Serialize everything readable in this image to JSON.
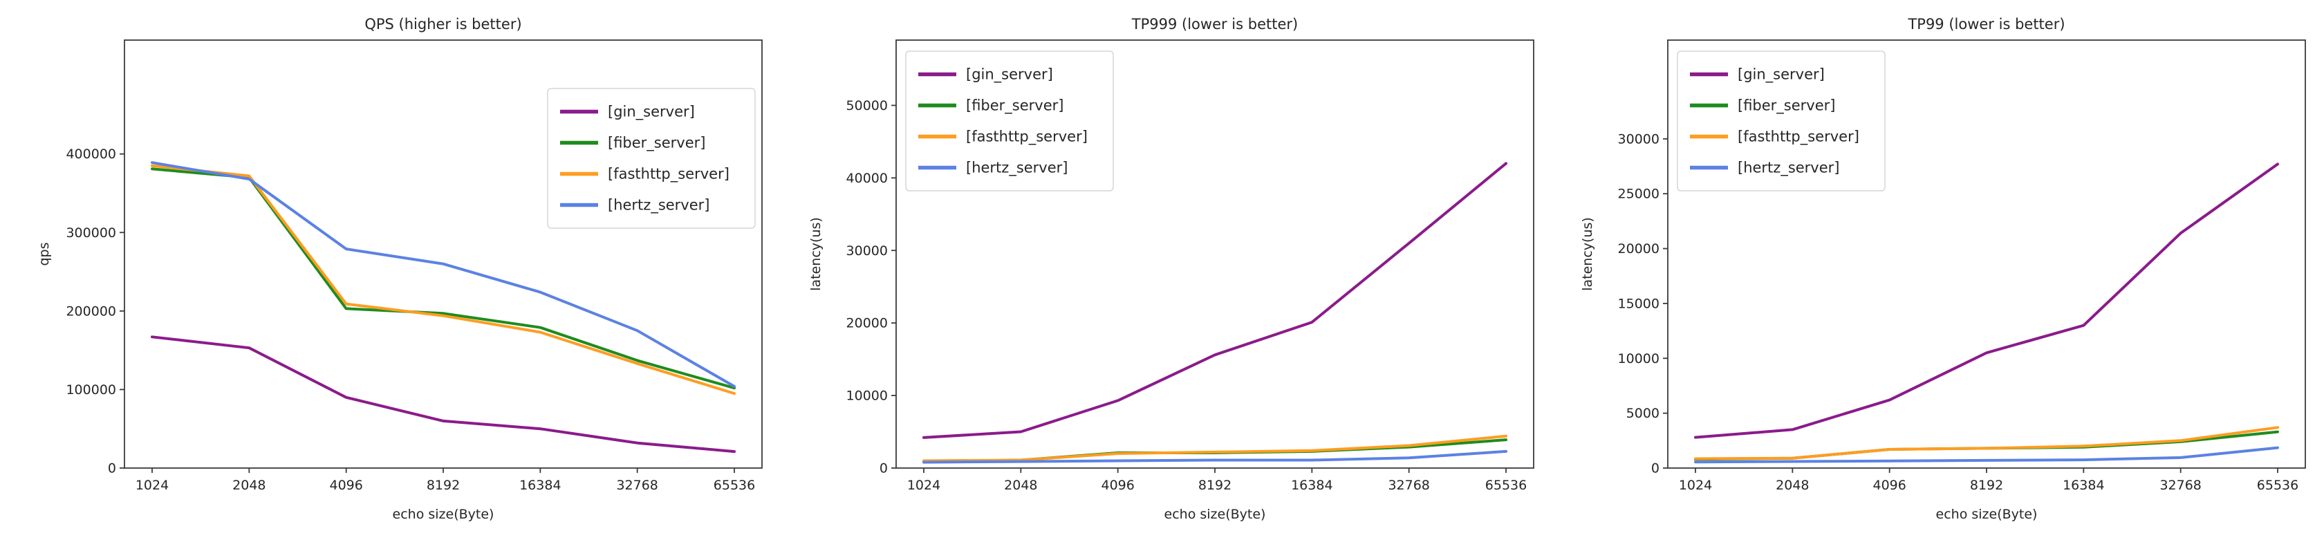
{
  "page": {
    "background": "#ffffff"
  },
  "chart_data": [
    {
      "type": "line",
      "title": "QPS (higher is better)",
      "xlabel": "echo size(Byte)",
      "ylabel": "qps",
      "categories": [
        "1024",
        "2048",
        "4096",
        "8192",
        "16384",
        "32768",
        "65536"
      ],
      "yticks": [
        0,
        100000,
        200000,
        300000,
        400000
      ],
      "ylim": [
        0,
        545000
      ],
      "grid": false,
      "legend_position": "upper-right",
      "series": [
        {
          "name": "[gin_server]",
          "color": "#8b1b8b",
          "values": [
            167000,
            153000,
            90000,
            60000,
            50000,
            32000,
            21000
          ]
        },
        {
          "name": "[fiber_server]",
          "color": "#1e8c1e",
          "values": [
            381000,
            370000,
            203000,
            197000,
            179000,
            137000,
            102000
          ]
        },
        {
          "name": "[fasthttp_server]",
          "color": "#ff9d21",
          "values": [
            385000,
            372000,
            209000,
            194000,
            173000,
            133000,
            95000
          ]
        },
        {
          "name": "[hertz_server]",
          "color": "#5b82e3",
          "values": [
            389000,
            368000,
            279000,
            260000,
            224000,
            175000,
            104000
          ]
        }
      ]
    },
    {
      "type": "line",
      "title": "TP999 (lower is better)",
      "xlabel": "echo size(Byte)",
      "ylabel": "latency(us)",
      "categories": [
        "1024",
        "2048",
        "4096",
        "8192",
        "16384",
        "32768",
        "65536"
      ],
      "yticks": [
        0,
        10000,
        20000,
        30000,
        40000,
        50000
      ],
      "ylim": [
        0,
        59000
      ],
      "grid": false,
      "legend_position": "upper-left",
      "series": [
        {
          "name": "[gin_server]",
          "color": "#8b1b8b",
          "values": [
            4200,
            5000,
            9300,
            15600,
            20100,
            31000,
            42000
          ]
        },
        {
          "name": "[fiber_server]",
          "color": "#1e8c1e",
          "values": [
            900,
            1100,
            2100,
            2100,
            2300,
            2900,
            3900
          ]
        },
        {
          "name": "[fasthttp_server]",
          "color": "#ff9d21",
          "values": [
            1000,
            1100,
            2000,
            2200,
            2400,
            3100,
            4400
          ]
        },
        {
          "name": "[hertz_server]",
          "color": "#5b82e3",
          "values": [
            800,
            900,
            1000,
            1100,
            1100,
            1400,
            2300
          ]
        }
      ]
    },
    {
      "type": "line",
      "title": "TP99 (lower is better)",
      "xlabel": "echo size(Byte)",
      "ylabel": "latency(us)",
      "categories": [
        "1024",
        "2048",
        "4096",
        "8192",
        "16384",
        "32768",
        "65536"
      ],
      "yticks": [
        0,
        5000,
        10000,
        15000,
        20000,
        25000,
        30000
      ],
      "ylim": [
        0,
        39000
      ],
      "grid": false,
      "legend_position": "upper-left",
      "series": [
        {
          "name": "[gin_server]",
          "color": "#8b1b8b",
          "values": [
            2800,
            3500,
            6200,
            10500,
            13000,
            21400,
            27700
          ]
        },
        {
          "name": "[fiber_server]",
          "color": "#1e8c1e",
          "values": [
            800,
            900,
            1700,
            1800,
            1900,
            2400,
            3300
          ]
        },
        {
          "name": "[fasthttp_server]",
          "color": "#ff9d21",
          "values": [
            850,
            900,
            1700,
            1800,
            2000,
            2500,
            3700
          ]
        },
        {
          "name": "[hertz_server]",
          "color": "#5b82e3",
          "values": [
            550,
            600,
            650,
            700,
            750,
            950,
            1850
          ]
        }
      ]
    }
  ]
}
